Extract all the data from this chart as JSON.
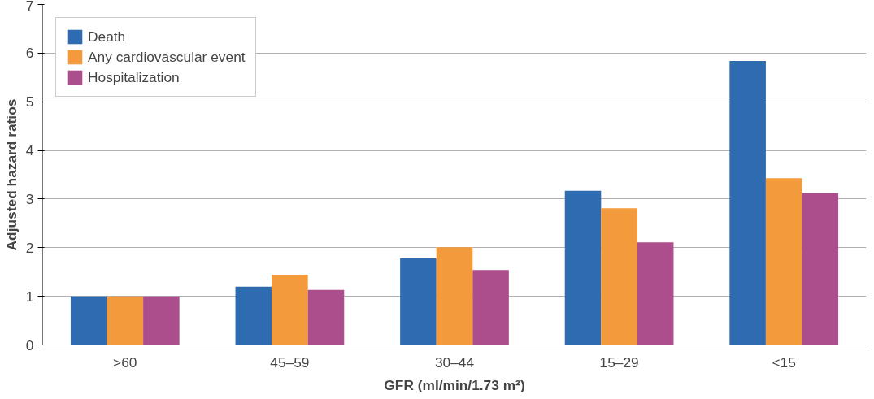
{
  "chart_data": {
    "type": "bar",
    "xlabel": "GFR (ml/min/1.73 m²)",
    "ylabel": "Adjusted hazard ratios",
    "categories": [
      ">60",
      "45–59",
      "30–44",
      "15–29",
      "<15"
    ],
    "series": [
      {
        "name": "Death",
        "color": "#2e6bb0",
        "values": [
          1.0,
          1.2,
          1.78,
          3.17,
          5.84
        ]
      },
      {
        "name": "Any cardiovascular event",
        "color": "#f39a3c",
        "values": [
          1.0,
          1.44,
          2.01,
          2.81,
          3.43
        ]
      },
      {
        "name": "Hospitalization",
        "color": "#ad4e8c",
        "values": [
          1.0,
          1.13,
          1.54,
          2.11,
          3.12
        ]
      }
    ],
    "ylim": [
      0,
      7
    ],
    "yticks": [
      0,
      1,
      2,
      3,
      4,
      5,
      6,
      7
    ],
    "grid": "y",
    "legend": "top left"
  }
}
